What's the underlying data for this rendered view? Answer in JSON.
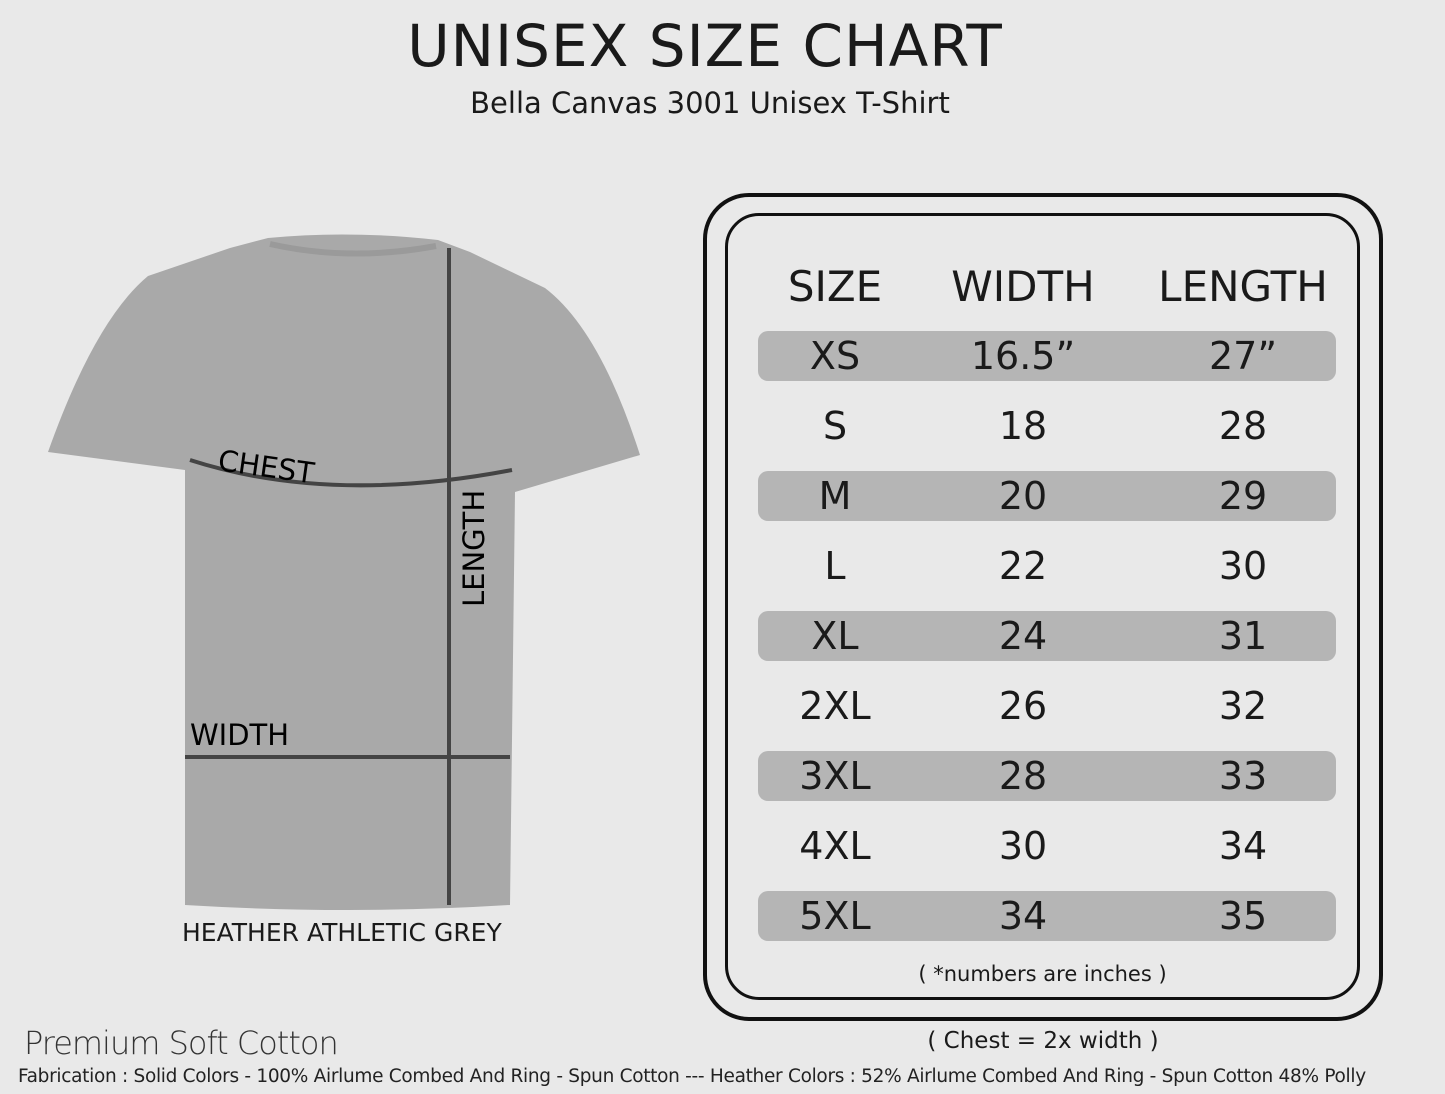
{
  "header": {
    "title": "UNISEX SIZE CHART",
    "subtitle": "Bella Canvas 3001 Unisex T-Shirt"
  },
  "shirt": {
    "color_name": "HEATHER ATHLETIC GREY",
    "fill_color": "#a9a9a9",
    "labels": {
      "chest": "CHEST",
      "length": "LENGTH",
      "width": "WIDTH"
    }
  },
  "table": {
    "headers": [
      "SIZE",
      "WIDTH",
      "LENGTH"
    ],
    "rows": [
      {
        "size": "XS",
        "width": "16.5”",
        "length": "27”"
      },
      {
        "size": "S",
        "width": "18",
        "length": "28"
      },
      {
        "size": "M",
        "width": "20",
        "length": "29"
      },
      {
        "size": "L",
        "width": "22",
        "length": "30"
      },
      {
        "size": "XL",
        "width": "24",
        "length": "31"
      },
      {
        "size": "2XL",
        "width": "26",
        "length": "32"
      },
      {
        "size": "3XL",
        "width": "28",
        "length": "33"
      },
      {
        "size": "4XL",
        "width": "30",
        "length": "34"
      },
      {
        "size": "5XL",
        "width": "34",
        "length": "35"
      }
    ],
    "band_color": "#b5b5b5",
    "note": "( *numbers are inches )"
  },
  "chest_note": "( Chest = 2x width )",
  "footer": {
    "tagline": "Premium Soft Cotton",
    "fabrication": "Fabrication : Solid Colors - 100% Airlume Combed And Ring - Spun Cotton --- Heather Colors : 52% Airlume Combed And Ring - Spun Cotton 48% Polly"
  }
}
